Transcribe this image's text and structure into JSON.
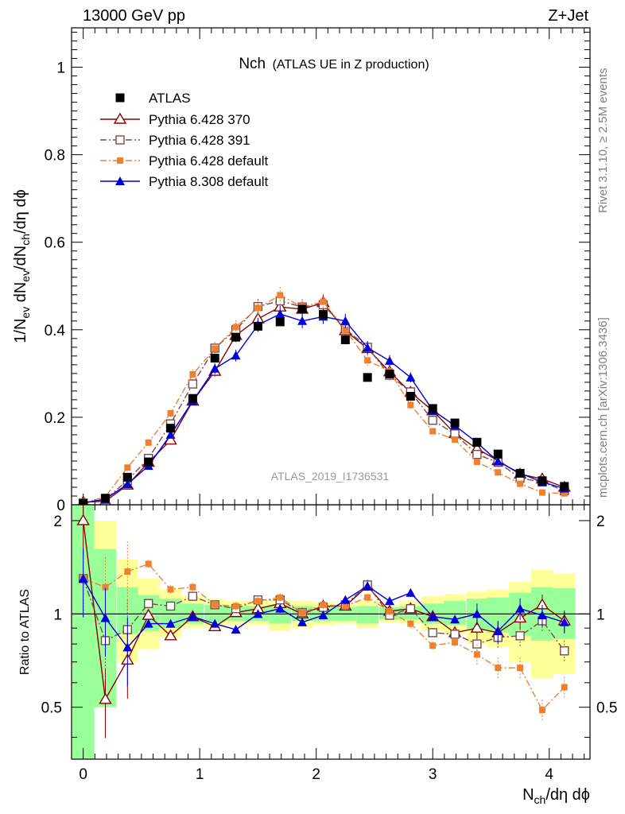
{
  "header": {
    "left": "13000 GeV pp",
    "right": "Z+Jet"
  },
  "side_labels": {
    "rivet": "Rivet 3.1.10, ≥ 2.5M events",
    "site": "mcplots.cern.ch [arXiv:1306.3436]"
  },
  "chart_data": {
    "type": "line",
    "title_main": "Nch",
    "title_sub": "(ATLAS UE in Z production)",
    "watermark": "ATLAS_2019_I1736531",
    "xlabel_parts": {
      "a": "N",
      "sub": "ch",
      "b": "/dη dϕ"
    },
    "ylabel_parts": {
      "a": "1/N",
      "s1": "ev",
      "b": " dN",
      "s2": "ev",
      "c": "/dN",
      "s3": "ch",
      "d": "/dη dϕ"
    },
    "ratio_ylabel": "Ratio to ATLAS",
    "xlim": [
      -0.1,
      4.35
    ],
    "main_ylim": [
      0,
      1.09
    ],
    "ratio_ylim": [
      0.34,
      2.25
    ],
    "x_ticks": [
      0,
      1,
      2,
      3,
      4
    ],
    "x_tick_labels": [
      "0",
      "1",
      "2",
      "3",
      "4"
    ],
    "main_y_ticks": [
      0,
      0.2,
      0.4,
      0.6,
      0.8,
      1
    ],
    "main_y_tick_labels": [
      "0",
      "0.2",
      "0.4",
      "0.6",
      "0.8",
      "1"
    ],
    "ratio_y_ticks": [
      0.5,
      1,
      2
    ],
    "ratio_y_tick_labels": [
      "0.5",
      "1",
      "2"
    ],
    "x": [
      0.0,
      0.19,
      0.38,
      0.56,
      0.75,
      0.94,
      1.13,
      1.31,
      1.5,
      1.69,
      1.88,
      2.06,
      2.25,
      2.44,
      2.63,
      2.81,
      3.0,
      3.19,
      3.38,
      3.56,
      3.75,
      3.94,
      4.13
    ],
    "data": {
      "name": "ATLAS",
      "color": "#000000",
      "values": [
        0.003,
        0.015,
        0.063,
        0.098,
        0.175,
        0.243,
        0.335,
        0.383,
        0.408,
        0.418,
        0.447,
        0.435,
        0.377,
        0.291,
        0.299,
        0.248,
        0.22,
        0.187,
        0.143,
        0.116,
        0.072,
        0.055,
        0.042
      ]
    },
    "series": [
      {
        "name": "Pythia 6.428 370",
        "color": "#8b0000",
        "marker": "open-triangle",
        "dash": "solid",
        "values": [
          0.006,
          0.008,
          0.045,
          0.097,
          0.148,
          0.237,
          0.305,
          0.387,
          0.425,
          0.452,
          0.447,
          0.462,
          0.398,
          0.357,
          0.304,
          0.257,
          0.215,
          0.163,
          0.128,
          0.101,
          0.07,
          0.059,
          0.04
        ],
        "ratio": [
          2.0,
          0.53,
          0.71,
          0.99,
          0.85,
          0.98,
          0.91,
          1.01,
          1.04,
          1.08,
          1.0,
          1.06,
          1.06,
          1.23,
          1.02,
          1.04,
          0.98,
          0.87,
          0.9,
          0.87,
          0.97,
          1.07,
          0.95
        ]
      },
      {
        "name": "Pythia 6.428 391",
        "color": "#7a4a4a",
        "marker": "open-square",
        "dash": "dashdot",
        "values": [
          0.004,
          0.012,
          0.056,
          0.106,
          0.185,
          0.276,
          0.358,
          0.4,
          0.453,
          0.466,
          0.452,
          0.457,
          0.402,
          0.36,
          0.296,
          0.258,
          0.193,
          0.162,
          0.115,
          0.097,
          0.061,
          0.052,
          0.032
        ],
        "ratio": [
          1.3,
          0.82,
          0.89,
          1.08,
          1.06,
          1.14,
          1.07,
          1.04,
          1.11,
          1.11,
          1.01,
          1.05,
          1.07,
          1.24,
          0.99,
          1.04,
          0.87,
          0.86,
          0.8,
          0.84,
          0.85,
          0.95,
          0.76
        ]
      },
      {
        "name": "Pythia 6.428 default",
        "color": "#f08030",
        "marker": "filled-square",
        "dash": "dashdot",
        "values": [
          0.004,
          0.018,
          0.085,
          0.142,
          0.209,
          0.298,
          0.357,
          0.406,
          0.45,
          0.479,
          0.452,
          0.464,
          0.4,
          0.33,
          0.305,
          0.228,
          0.168,
          0.149,
          0.098,
          0.074,
          0.048,
          0.028,
          0.026
        ],
        "ratio": [
          1.3,
          1.22,
          1.37,
          1.45,
          1.2,
          1.22,
          1.07,
          1.06,
          1.1,
          1.13,
          1.01,
          1.07,
          1.06,
          1.13,
          1.02,
          0.93,
          0.79,
          0.81,
          0.74,
          0.67,
          0.67,
          0.49,
          0.58
        ]
      },
      {
        "name": "Pythia 8.308 default",
        "color": "#0000dd",
        "marker": "filled-triangle",
        "dash": "solid",
        "values": [
          0.004,
          0.013,
          0.047,
          0.089,
          0.16,
          0.237,
          0.311,
          0.341,
          0.411,
          0.436,
          0.42,
          0.43,
          0.42,
          0.359,
          0.329,
          0.291,
          0.216,
          0.181,
          0.142,
          0.099,
          0.072,
          0.052,
          0.037
        ],
        "ratio": [
          1.3,
          0.97,
          0.78,
          0.93,
          0.93,
          0.98,
          0.93,
          0.89,
          1.0,
          1.04,
          0.94,
          0.99,
          1.11,
          1.23,
          1.1,
          1.17,
          0.98,
          0.96,
          1.0,
          0.88,
          1.04,
          0.99,
          0.94
        ]
      }
    ],
    "band_yellow": [
      [
        0.3,
        2.3
      ],
      [
        0.5,
        2.0
      ],
      [
        0.7,
        1.5
      ],
      [
        0.77,
        1.3
      ],
      [
        0.84,
        1.2
      ],
      [
        0.9,
        1.14
      ],
      [
        0.9,
        1.12
      ],
      [
        0.92,
        1.1
      ],
      [
        0.92,
        1.1
      ],
      [
        0.88,
        1.11
      ],
      [
        0.9,
        1.1
      ],
      [
        0.92,
        1.09
      ],
      [
        0.93,
        1.08
      ],
      [
        0.9,
        1.1
      ],
      [
        0.94,
        1.07
      ],
      [
        0.93,
        1.1
      ],
      [
        0.88,
        1.14
      ],
      [
        0.86,
        1.16
      ],
      [
        0.8,
        1.18
      ],
      [
        0.78,
        1.2
      ],
      [
        0.7,
        1.27
      ],
      [
        0.62,
        1.39
      ],
      [
        0.64,
        1.35
      ]
    ],
    "band_green": [
      [
        0.3,
        2.3
      ],
      [
        0.5,
        1.62
      ],
      [
        0.86,
        1.22
      ],
      [
        0.88,
        1.15
      ],
      [
        0.9,
        1.12
      ],
      [
        0.93,
        1.08
      ],
      [
        0.94,
        1.07
      ],
      [
        0.95,
        1.06
      ],
      [
        0.95,
        1.06
      ],
      [
        0.93,
        1.07
      ],
      [
        0.95,
        1.06
      ],
      [
        0.95,
        1.05
      ],
      [
        0.95,
        1.05
      ],
      [
        0.93,
        1.06
      ],
      [
        0.96,
        1.05
      ],
      [
        0.96,
        1.06
      ],
      [
        0.93,
        1.08
      ],
      [
        0.92,
        1.1
      ],
      [
        0.89,
        1.12
      ],
      [
        0.87,
        1.13
      ],
      [
        0.85,
        1.17
      ],
      [
        0.82,
        1.22
      ],
      [
        0.83,
        1.21
      ]
    ]
  }
}
